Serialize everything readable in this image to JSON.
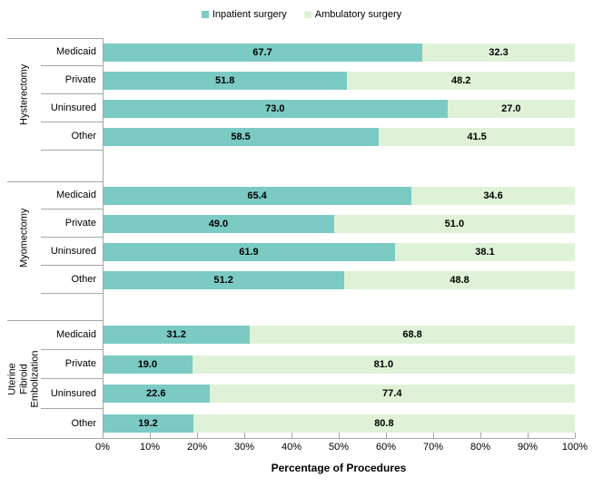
{
  "legend": {
    "items": [
      {
        "label": "Inpatient surgery",
        "color": "#7bcbc4"
      },
      {
        "label": "Ambulatory surgery",
        "color": "#dff2d8"
      }
    ]
  },
  "axis": {
    "xlabel": "Percentage of Procedures",
    "ticks": [
      "0%",
      "10%",
      "20%",
      "30%",
      "40%",
      "50%",
      "60%",
      "70%",
      "80%",
      "90%",
      "100%"
    ]
  },
  "groups": [
    {
      "label": "Hysterectomy",
      "rows": [
        {
          "category": "Medicaid",
          "inpatient": "67.7",
          "ambulatory": "32.3"
        },
        {
          "category": "Private",
          "inpatient": "51.8",
          "ambulatory": "48.2"
        },
        {
          "category": "Uninsured",
          "inpatient": "73.0",
          "ambulatory": "27.0"
        },
        {
          "category": "Other",
          "inpatient": "58.5",
          "ambulatory": "41.5"
        }
      ]
    },
    {
      "label": "Myomectomy",
      "rows": [
        {
          "category": "Medicaid",
          "inpatient": "65.4",
          "ambulatory": "34.6"
        },
        {
          "category": "Private",
          "inpatient": "49.0",
          "ambulatory": "51.0"
        },
        {
          "category": "Uninsured",
          "inpatient": "61.9",
          "ambulatory": "38.1"
        },
        {
          "category": "Other",
          "inpatient": "51.2",
          "ambulatory": "48.8"
        }
      ]
    },
    {
      "label": "Uterine Fibroid Embolization",
      "rows": [
        {
          "category": "Medicaid",
          "inpatient": "31.2",
          "ambulatory": "68.8"
        },
        {
          "category": "Private",
          "inpatient": "19.0",
          "ambulatory": "81.0"
        },
        {
          "category": "Uninsured",
          "inpatient": "22.6",
          "ambulatory": "77.4"
        },
        {
          "category": "Other",
          "inpatient": "19.2",
          "ambulatory": "80.8"
        }
      ]
    }
  ],
  "chart_data": {
    "type": "bar",
    "orientation": "horizontal",
    "stacked": true,
    "title": "",
    "xlabel": "Percentage of Procedures",
    "xlim": [
      0,
      100
    ],
    "x_tick_labels": [
      "0%",
      "10%",
      "20%",
      "30%",
      "40%",
      "50%",
      "60%",
      "70%",
      "80%",
      "90%",
      "100%"
    ],
    "categories": [
      {
        "group": "Hysterectomy",
        "items": [
          "Medicaid",
          "Private",
          "Uninsured",
          "Other"
        ]
      },
      {
        "group": "Myomectomy",
        "items": [
          "Medicaid",
          "Private",
          "Uninsured",
          "Other"
        ]
      },
      {
        "group": "Uterine Fibroid Embolization",
        "items": [
          "Medicaid",
          "Private",
          "Uninsured",
          "Other"
        ]
      }
    ],
    "series": [
      {
        "name": "Inpatient surgery",
        "color": "#7bcbc4",
        "values": [
          67.7,
          51.8,
          73.0,
          58.5,
          65.4,
          49.0,
          61.9,
          51.2,
          31.2,
          19.0,
          22.6,
          19.2
        ]
      },
      {
        "name": "Ambulatory surgery",
        "color": "#dff2d8",
        "values": [
          32.3,
          48.2,
          27.0,
          41.5,
          34.6,
          51.0,
          38.1,
          48.8,
          68.8,
          81.0,
          77.4,
          80.8
        ]
      }
    ],
    "legend_position": "top",
    "grid": false,
    "axis_line_color": "#a6a6a6"
  }
}
